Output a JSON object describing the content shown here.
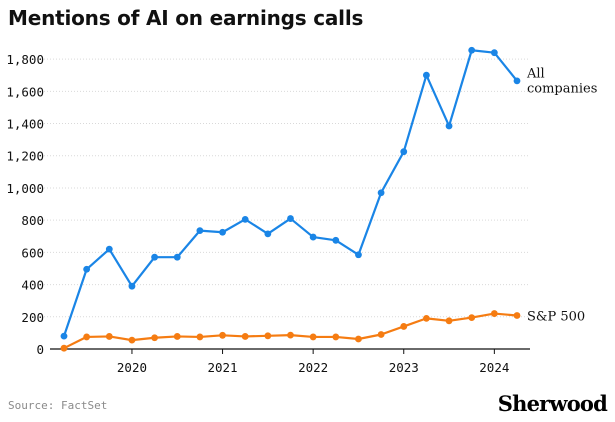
{
  "title": "Mentions of AI on earnings calls",
  "source": "Source: FactSet",
  "logo": "Sherwood",
  "colors": {
    "all": "#1a85e6",
    "sp500": "#f57c12",
    "grid": "#d9d9d9",
    "axis": "#111111"
  },
  "chart_data": {
    "type": "line",
    "title": "Mentions of AI on earnings calls",
    "xlabel": "",
    "ylabel": "",
    "ylim": [
      0,
      1900
    ],
    "yticks": [
      0,
      200,
      400,
      600,
      800,
      1000,
      1200,
      1400,
      1600,
      1800
    ],
    "ytick_labels": [
      "0",
      "200",
      "400",
      "600",
      "800",
      "1,000",
      "1,200",
      "1,400",
      "1,600",
      "1,800"
    ],
    "xticks": [
      2020,
      2021,
      2022,
      2023,
      2024
    ],
    "xtick_labels": [
      "2020",
      "2021",
      "2022",
      "2023",
      "2024"
    ],
    "x": [
      2019.25,
      2019.5,
      2019.75,
      2020.0,
      2020.25,
      2020.5,
      2020.75,
      2021.0,
      2021.25,
      2021.5,
      2021.75,
      2022.0,
      2022.25,
      2022.5,
      2022.75,
      2023.0,
      2023.25,
      2023.5,
      2023.75,
      2024.0,
      2024.25
    ],
    "grid": "horizontal",
    "series": [
      {
        "name": "All companies",
        "label_lines": [
          "All",
          "companies"
        ],
        "color": "#1a85e6",
        "values": [
          80,
          495,
          620,
          390,
          570,
          570,
          735,
          725,
          805,
          715,
          810,
          695,
          675,
          585,
          970,
          1225,
          1700,
          1385,
          1855,
          1840,
          1665
        ]
      },
      {
        "name": "S&P 500",
        "label_lines": [
          "S&P 500"
        ],
        "color": "#f57c12",
        "values": [
          5,
          75,
          78,
          55,
          70,
          78,
          75,
          85,
          78,
          82,
          86,
          75,
          75,
          62,
          90,
          140,
          190,
          175,
          195,
          220,
          208
        ]
      }
    ]
  }
}
